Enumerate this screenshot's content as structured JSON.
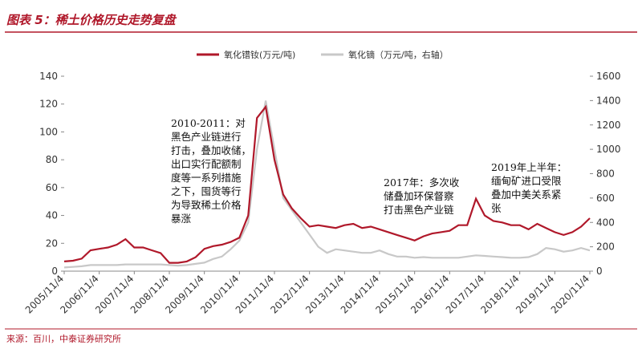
{
  "chart_data": {
    "type": "line",
    "title": "图表 5：稀土价格历史走势复盘",
    "source": "来源：百川，中泰证券研究所",
    "categories": [
      "2005/11/4",
      null,
      null,
      null,
      "2006/11/4",
      null,
      null,
      null,
      "2007/11/4",
      null,
      null,
      null,
      "2008/11/4",
      null,
      null,
      null,
      "2009/11/4",
      null,
      null,
      null,
      "2010/11/4",
      null,
      null,
      null,
      "2011/11/4",
      null,
      null,
      null,
      "2012/11/4",
      null,
      null,
      null,
      "2013/11/4",
      null,
      null,
      null,
      "2014/11/4",
      null,
      null,
      null,
      "2015/11/4",
      null,
      null,
      null,
      "2016/11/4",
      null,
      null,
      null,
      "2017/11/4",
      null,
      null,
      null,
      "2018/11/4",
      null,
      null,
      null,
      "2019/11/4",
      null,
      null,
      null,
      "2020/11/4"
    ],
    "series": [
      {
        "name": "氧化镨钕(万元/吨)",
        "color": "#b0182a",
        "values": [
          7,
          7.5,
          9,
          15,
          16,
          17,
          19,
          23,
          17,
          17,
          15,
          13,
          6,
          6,
          7,
          10,
          16,
          18,
          19,
          21,
          24,
          40,
          110,
          118,
          80,
          55,
          45,
          38,
          32,
          33,
          32,
          31,
          33,
          34,
          31,
          32,
          30,
          28,
          26,
          24,
          22,
          25,
          27,
          28,
          29,
          33,
          33,
          52,
          40,
          36,
          35,
          33,
          33,
          30,
          34,
          31,
          28,
          26,
          28,
          32,
          38
        ]
      },
      {
        "name": "氧化镝（万元/吨，右轴）",
        "color": "#c8c8c8",
        "axis": "y2",
        "values": [
          30,
          35,
          40,
          50,
          50,
          50,
          50,
          55,
          55,
          55,
          55,
          55,
          50,
          45,
          50,
          60,
          70,
          100,
          120,
          180,
          250,
          400,
          1000,
          1400,
          1000,
          600,
          500,
          400,
          300,
          200,
          150,
          180,
          170,
          160,
          150,
          150,
          170,
          140,
          120,
          120,
          110,
          115,
          110,
          110,
          110,
          110,
          120,
          130,
          125,
          120,
          115,
          110,
          110,
          115,
          140,
          190,
          180,
          160,
          170,
          190,
          170
        ]
      }
    ],
    "ylim": [
      0,
      140
    ],
    "yticks": [
      0,
      20,
      40,
      60,
      80,
      100,
      120,
      140
    ],
    "y2lim": [
      0,
      1600
    ],
    "y2ticks": [
      0,
      200,
      400,
      600,
      800,
      1000,
      1200,
      1400,
      1600
    ],
    "annotations": [
      [
        "2010-2011：对",
        "黑色产业链进行",
        "打击，叠加收储，",
        "出口实行配额制",
        "度等一系列措施",
        "之下，囤货等行",
        "为导致稀土价格",
        "暴涨"
      ],
      [
        "2017年：多次收",
        "储叠加环保督察",
        "打击黑色产业链"
      ],
      [
        "2019年上半年：",
        "缅甸矿进口受限",
        "叠加中美关系紧",
        "张"
      ]
    ]
  }
}
